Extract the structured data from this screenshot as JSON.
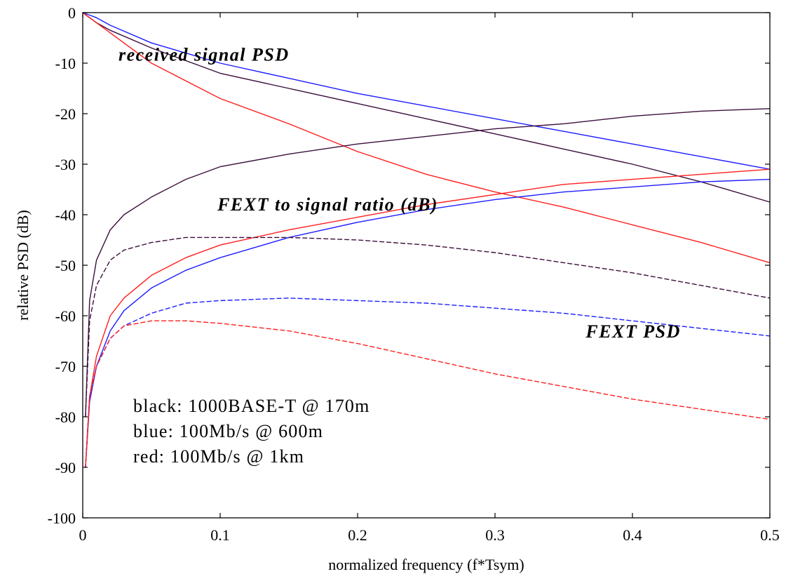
{
  "chart_data": {
    "type": "line",
    "xlabel": "normalized frequency (f*Tsym)",
    "ylabel": "relative PSD (dB)",
    "xlim": [
      0,
      0.5
    ],
    "ylim": [
      -100,
      0
    ],
    "xticks": [
      "0",
      "0.1",
      "0.2",
      "0.3",
      "0.4",
      "0.5"
    ],
    "yticks": [
      "0",
      "-10",
      "-20",
      "-30",
      "-40",
      "-50",
      "-60",
      "-70",
      "-80",
      "-90",
      "-100"
    ],
    "grid": false,
    "annotations": [
      {
        "text": "received signal PSD",
        "x": 0.026,
        "y": -9.5
      },
      {
        "text": "FEXT to signal ratio (dB)",
        "x": 0.098,
        "y": -39.2
      },
      {
        "text": "FEXT PSD",
        "x": 0.366,
        "y": -64.3
      }
    ],
    "legend_text": [
      "black: 1000BASE-T @ 170m",
      "blue: 100Mb/s @ 600m",
      "red: 100Mb/s @ 1km"
    ],
    "colors": {
      "black": "#3c0f3c",
      "blue": "#1e1eff",
      "red": "#ff1e1e"
    },
    "series": [
      {
        "group": "received signal PSD",
        "color_key": "black",
        "dash": "solid",
        "x": [
          0,
          0.01,
          0.02,
          0.05,
          0.1,
          0.15,
          0.2,
          0.25,
          0.3,
          0.35,
          0.4,
          0.45,
          0.5
        ],
        "y": [
          0,
          -2,
          -3.5,
          -7,
          -12,
          -15,
          -18,
          -21,
          -24,
          -27,
          -30,
          -33.5,
          -37.5
        ]
      },
      {
        "group": "received signal PSD",
        "color_key": "blue",
        "dash": "solid",
        "x": [
          0,
          0.01,
          0.02,
          0.05,
          0.1,
          0.15,
          0.2,
          0.25,
          0.3,
          0.35,
          0.4,
          0.45,
          0.5
        ],
        "y": [
          0,
          -1,
          -2.5,
          -6,
          -10,
          -13,
          -16,
          -18.5,
          -21,
          -23.5,
          -26,
          -28.5,
          -31
        ]
      },
      {
        "group": "received signal PSD",
        "color_key": "red",
        "dash": "solid",
        "x": [
          0,
          0.01,
          0.02,
          0.05,
          0.1,
          0.15,
          0.2,
          0.25,
          0.3,
          0.35,
          0.4,
          0.45,
          0.5
        ],
        "y": [
          0,
          -2,
          -4,
          -10,
          -17,
          -22,
          -27.5,
          -32,
          -35.5,
          -38.5,
          -42,
          -45.5,
          -49.5
        ]
      },
      {
        "group": "FEXT to signal ratio (dB)",
        "color_key": "black",
        "dash": "solid",
        "x": [
          0.002,
          0.005,
          0.01,
          0.02,
          0.03,
          0.05,
          0.075,
          0.1,
          0.15,
          0.2,
          0.25,
          0.3,
          0.35,
          0.4,
          0.45,
          0.5
        ],
        "y": [
          -80,
          -57,
          -49,
          -43,
          -40,
          -36.5,
          -33,
          -30.5,
          -28,
          -26,
          -24.5,
          -23,
          -22,
          -20.5,
          -19.5,
          -19
        ]
      },
      {
        "group": "FEXT to signal ratio (dB)",
        "color_key": "blue",
        "dash": "solid",
        "x": [
          0.002,
          0.005,
          0.01,
          0.02,
          0.03,
          0.05,
          0.075,
          0.1,
          0.15,
          0.2,
          0.25,
          0.3,
          0.35,
          0.4,
          0.45,
          0.5
        ],
        "y": [
          -90,
          -77,
          -70,
          -63,
          -59,
          -54.5,
          -51,
          -48.5,
          -44.5,
          -41.5,
          -39,
          -37,
          -35.5,
          -34.5,
          -33.5,
          -33
        ]
      },
      {
        "group": "FEXT to signal ratio (dB)",
        "color_key": "red",
        "dash": "solid",
        "x": [
          0.002,
          0.005,
          0.01,
          0.02,
          0.03,
          0.05,
          0.075,
          0.1,
          0.15,
          0.2,
          0.25,
          0.3,
          0.35,
          0.4,
          0.45,
          0.5
        ],
        "y": [
          -90,
          -76,
          -68,
          -60,
          -56.5,
          -52,
          -48.5,
          -46,
          -43,
          -40.5,
          -38,
          -36,
          -34,
          -33,
          -32,
          -31
        ]
      },
      {
        "group": "FEXT PSD",
        "color_key": "black",
        "dash": "dashed",
        "x": [
          0.002,
          0.005,
          0.01,
          0.02,
          0.03,
          0.05,
          0.075,
          0.1,
          0.15,
          0.2,
          0.25,
          0.3,
          0.35,
          0.4,
          0.45,
          0.5
        ],
        "y": [
          -80,
          -61,
          -54,
          -49,
          -47,
          -45.5,
          -44.5,
          -44.5,
          -44.5,
          -45,
          -46,
          -47.5,
          -49.5,
          -51.5,
          -54,
          -56.5
        ]
      },
      {
        "group": "FEXT PSD",
        "color_key": "blue",
        "dash": "dashed",
        "x": [
          0.002,
          0.005,
          0.01,
          0.02,
          0.03,
          0.05,
          0.075,
          0.1,
          0.15,
          0.2,
          0.25,
          0.3,
          0.35,
          0.4,
          0.45,
          0.5
        ],
        "y": [
          -90,
          -76,
          -70,
          -64.5,
          -62,
          -59.5,
          -57.5,
          -57,
          -56.5,
          -57,
          -57.5,
          -58.5,
          -59.5,
          -61,
          -62.5,
          -64
        ]
      },
      {
        "group": "FEXT PSD",
        "color_key": "red",
        "dash": "dashed",
        "x": [
          0.002,
          0.005,
          0.01,
          0.02,
          0.03,
          0.05,
          0.075,
          0.1,
          0.15,
          0.2,
          0.25,
          0.3,
          0.35,
          0.4,
          0.45,
          0.5
        ],
        "y": [
          -90,
          -76,
          -70,
          -64.5,
          -62,
          -61,
          -61,
          -61.5,
          -63,
          -65.5,
          -68.5,
          -71.5,
          -74,
          -76.5,
          -78.5,
          -80.5
        ]
      }
    ]
  }
}
